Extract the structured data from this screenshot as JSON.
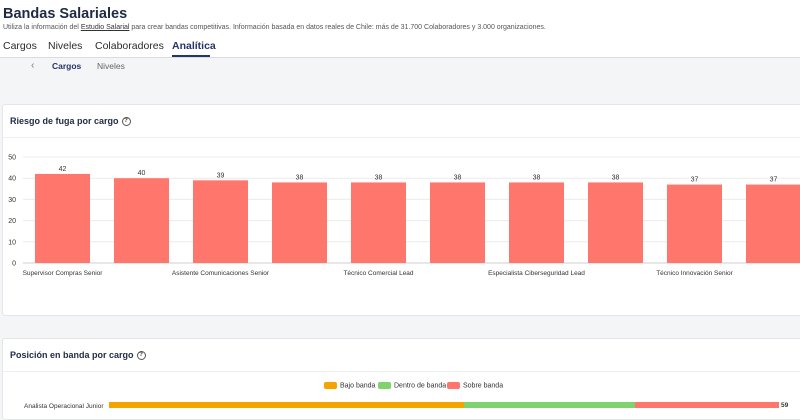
{
  "page": {
    "title": "Bandas Salariales",
    "subtitle_pre": "Utiliza la información del ",
    "subtitle_link": "Estudio Salarial",
    "subtitle_post": " para crear bandas competitivas. Información basada en datos reales de Chile: más de 31.700 Colaboradores y 3.000 organizaciones."
  },
  "tabs": [
    {
      "label": "Cargos",
      "active": false
    },
    {
      "label": "Niveles",
      "active": false
    },
    {
      "label": "Colaboradores",
      "active": false
    },
    {
      "label": "Analítica",
      "active": true
    }
  ],
  "subtabs": {
    "back_icon": "chevron-left-icon",
    "items": [
      {
        "label": "Cargos",
        "active": true
      },
      {
        "label": "Niveles",
        "active": false
      }
    ]
  },
  "card1": {
    "title": "Riesgo de fuga por cargo",
    "help_icon": "question-circle-icon"
  },
  "card2": {
    "title": "Posición en banda por cargo",
    "help_icon": "question-circle-icon"
  },
  "chart_data": [
    {
      "type": "bar",
      "title": "Riesgo de fuga por cargo",
      "color": "#ff766d",
      "ylim": [
        0,
        50
      ],
      "yticks": [
        0,
        10,
        20,
        30,
        40,
        50
      ],
      "grid": true,
      "xtick_labels": [
        "Supervisor Compras Senior",
        "Asistente Comunicaciones Senior",
        "Técnico Comercial Lead",
        "Especialista Ciberseguridad Lead",
        "Técnico Innovación Senior"
      ],
      "values": [
        42,
        40,
        39,
        38,
        38,
        38,
        38,
        38,
        37,
        37
      ]
    },
    {
      "type": "bar",
      "orientation": "horizontal",
      "stacked": true,
      "title": "Posición en banda por cargo",
      "legend_position": "top",
      "series": [
        {
          "name": "Bajo banda",
          "color": "#f5a300"
        },
        {
          "name": "Dentro de banda",
          "color": "#7ed36c"
        },
        {
          "name": "Sobre banda",
          "color": "#ff766d"
        }
      ],
      "rows": [
        {
          "label": "Analista Operacional Junior",
          "segment_shares": [
            0.53,
            0.255,
            0.215
          ],
          "total": 59
        }
      ]
    }
  ]
}
